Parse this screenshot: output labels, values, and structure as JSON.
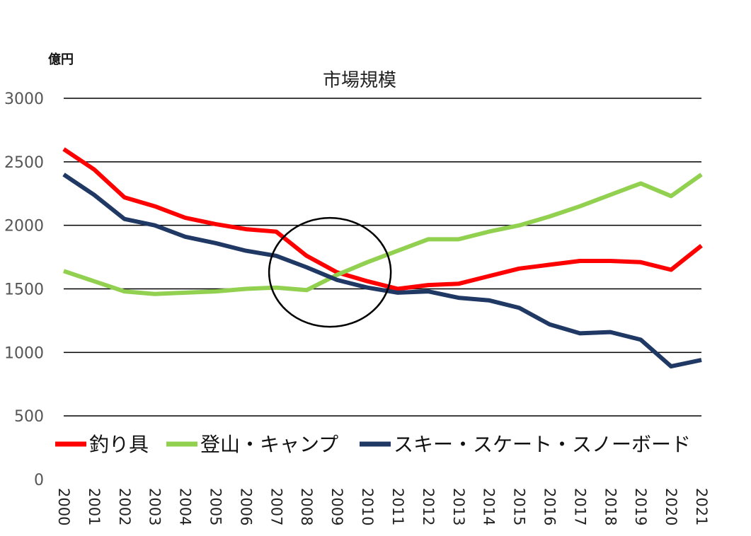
{
  "chart_data": {
    "type": "line",
    "title": "市場規模",
    "ylabel": "億円",
    "xlabel": "",
    "ylim": [
      0,
      3000
    ],
    "y_ticks": [
      "0",
      "500",
      "1000",
      "1500",
      "2000",
      "2500",
      "3000"
    ],
    "grid": true,
    "legend_position": "bottom",
    "categories": [
      "2000",
      "2001",
      "2002",
      "2003",
      "2004",
      "2005",
      "2006",
      "2007",
      "2008",
      "2009",
      "2010",
      "2011",
      "2012",
      "2013",
      "2014",
      "2015",
      "2016",
      "2017",
      "2018",
      "2019",
      "2020",
      "2021"
    ],
    "series": [
      {
        "name": "釣り具",
        "color": "#ff0000",
        "values": [
          2600,
          2440,
          2220,
          2150,
          2060,
          2010,
          1970,
          1950,
          1760,
          1630,
          1560,
          1500,
          1530,
          1540,
          1600,
          1660,
          1690,
          1720,
          1720,
          1710,
          1650,
          1840
        ]
      },
      {
        "name": "登山・キャンプ",
        "color": "#92d050",
        "values": [
          1640,
          1560,
          1480,
          1460,
          1470,
          1480,
          1500,
          1510,
          1490,
          1610,
          1710,
          1800,
          1890,
          1890,
          1950,
          2000,
          2070,
          2150,
          2240,
          2330,
          2230,
          2400
        ]
      },
      {
        "name": "スキー・スケート・スノーボード",
        "color": "#203864",
        "values": [
          2400,
          2240,
          2050,
          2000,
          1910,
          1860,
          1800,
          1760,
          1670,
          1570,
          1510,
          1470,
          1480,
          1430,
          1410,
          1350,
          1220,
          1150,
          1160,
          1100,
          890,
          940
        ]
      }
    ],
    "annotation": {
      "type": "circle",
      "around_year": "2009",
      "around_value": 1630
    }
  }
}
